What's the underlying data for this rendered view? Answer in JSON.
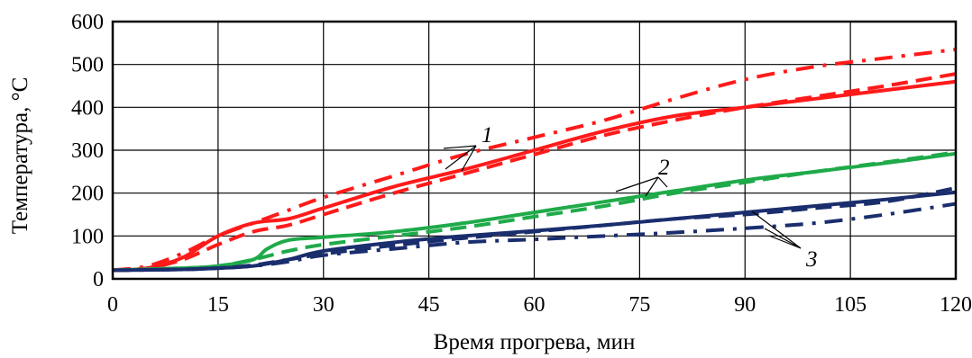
{
  "chart_data": {
    "type": "line",
    "xlabel": "Время прогрева, мин",
    "ylabel": "Температура, °C",
    "xlim": [
      0,
      120
    ],
    "ylim": [
      0,
      600
    ],
    "xticks": [
      "0",
      "15",
      "30",
      "45",
      "60",
      "75",
      "90",
      "105",
      "120"
    ],
    "yticks": [
      "0",
      "100",
      "200",
      "300",
      "400",
      "500",
      "600"
    ],
    "grid": true,
    "legend": "none",
    "annotations": [
      {
        "text": "1",
        "group": "red"
      },
      {
        "text": "2",
        "group": "green"
      },
      {
        "text": "3",
        "group": "navy"
      }
    ],
    "series": [
      {
        "group": "red",
        "style": "solid",
        "color": "#ff1a1a",
        "x": [
          0,
          5,
          10,
          15,
          20,
          25,
          30,
          40,
          50,
          60,
          70,
          80,
          90,
          100,
          110,
          120
        ],
        "y": [
          20,
          25,
          50,
          100,
          130,
          140,
          165,
          215,
          255,
          300,
          345,
          380,
          400,
          420,
          440,
          460
        ]
      },
      {
        "group": "red",
        "style": "dash",
        "color": "#ff1a1a",
        "x": [
          0,
          5,
          10,
          15,
          20,
          25,
          30,
          40,
          50,
          60,
          70,
          80,
          90,
          100,
          110,
          120
        ],
        "y": [
          20,
          25,
          45,
          80,
          110,
          125,
          150,
          200,
          245,
          290,
          335,
          370,
          400,
          425,
          450,
          478
        ]
      },
      {
        "group": "red",
        "style": "dashdot",
        "color": "#ff1a1a",
        "x": [
          0,
          5,
          10,
          15,
          20,
          25,
          30,
          40,
          50,
          60,
          70,
          80,
          90,
          100,
          110,
          120
        ],
        "y": [
          20,
          30,
          60,
          100,
          130,
          160,
          190,
          240,
          290,
          330,
          370,
          420,
          465,
          495,
          515,
          535
        ]
      },
      {
        "group": "green",
        "style": "solid",
        "color": "#1faa4a",
        "x": [
          0,
          10,
          15,
          20,
          22,
          25,
          30,
          40,
          50,
          60,
          70,
          80,
          90,
          100,
          110,
          120
        ],
        "y": [
          20,
          25,
          30,
          45,
          70,
          90,
          97,
          110,
          130,
          155,
          180,
          205,
          230,
          250,
          270,
          292
        ]
      },
      {
        "group": "green",
        "style": "dash",
        "color": "#1faa4a",
        "x": [
          0,
          10,
          15,
          20,
          25,
          30,
          40,
          50,
          60,
          70,
          80,
          90,
          100,
          110,
          120
        ],
        "y": [
          20,
          25,
          30,
          45,
          65,
          80,
          100,
          120,
          145,
          170,
          200,
          225,
          250,
          272,
          295
        ]
      },
      {
        "group": "navy",
        "style": "solid",
        "color": "#1a2e6e",
        "x": [
          0,
          10,
          15,
          20,
          25,
          30,
          40,
          50,
          60,
          70,
          80,
          90,
          100,
          110,
          120
        ],
        "y": [
          20,
          22,
          25,
          30,
          45,
          65,
          85,
          100,
          112,
          125,
          140,
          155,
          170,
          185,
          202
        ]
      },
      {
        "group": "navy",
        "style": "dash",
        "color": "#1a2e6e",
        "x": [
          0,
          10,
          15,
          20,
          25,
          30,
          40,
          50,
          60,
          70,
          80,
          90,
          100,
          110,
          120
        ],
        "y": [
          20,
          22,
          25,
          32,
          45,
          58,
          78,
          95,
          110,
          125,
          140,
          150,
          165,
          180,
          212
        ]
      },
      {
        "group": "navy",
        "style": "dashdot",
        "color": "#1a2e6e",
        "x": [
          0,
          10,
          15,
          20,
          25,
          30,
          40,
          50,
          60,
          70,
          80,
          90,
          100,
          110,
          120
        ],
        "y": [
          20,
          22,
          25,
          30,
          40,
          55,
          70,
          85,
          92,
          100,
          108,
          118,
          130,
          150,
          175
        ]
      }
    ]
  }
}
